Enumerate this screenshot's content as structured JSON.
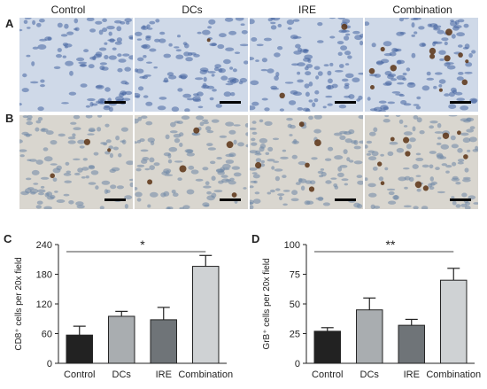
{
  "figure": {
    "columns": [
      "Control",
      "DCs",
      "IRE",
      "Combination"
    ],
    "rows": [
      "A",
      "B"
    ]
  },
  "chart_data": [
    {
      "panel": "C",
      "type": "bar",
      "categories": [
        "Control",
        "DCs",
        "IRE",
        "Combination"
      ],
      "values": [
        57,
        95,
        88,
        196
      ],
      "errors": [
        18,
        10,
        25,
        22
      ],
      "ylabel": "CD8⁺ cells per 20x field",
      "yticks": [
        0,
        60,
        120,
        180,
        240
      ],
      "ylim": [
        0,
        240
      ],
      "colors": [
        "#222222",
        "#a9adb0",
        "#6f7478",
        "#cfd2d4"
      ],
      "significance": {
        "label": "*",
        "from": "Control",
        "to": "Combination"
      }
    },
    {
      "panel": "D",
      "type": "bar",
      "categories": [
        "Control",
        "DCs",
        "IRE",
        "Combination"
      ],
      "values": [
        27,
        45,
        32,
        70
      ],
      "errors": [
        3,
        10,
        5,
        10
      ],
      "ylabel": "GrB⁺ cells per 20x field",
      "yticks": [
        0,
        25,
        50,
        75,
        100
      ],
      "ylim": [
        0,
        100
      ],
      "colors": [
        "#222222",
        "#a9adb0",
        "#6f7478",
        "#cfd2d4"
      ],
      "significance": {
        "label": "**",
        "from": "Control",
        "to": "Combination"
      }
    }
  ]
}
